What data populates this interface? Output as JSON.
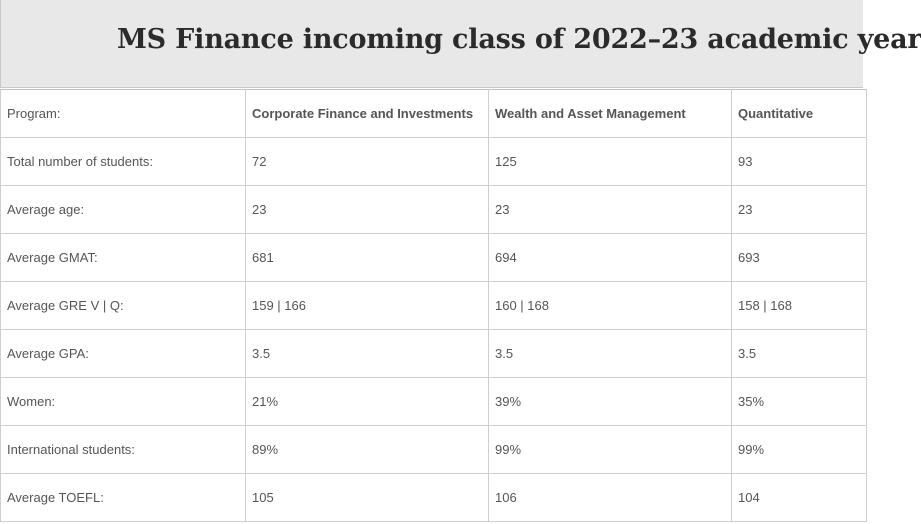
{
  "title": "MS Finance incoming class of 2022–23 academic year",
  "table": {
    "header": {
      "label": "Program:",
      "columns": [
        "Corporate Finance and Investments",
        "Wealth and Asset Management",
        "Quantitative"
      ]
    },
    "rows": [
      {
        "label": "Total number of students:",
        "values": [
          "72",
          "125",
          "93"
        ]
      },
      {
        "label": "Average age:",
        "values": [
          "23",
          "23",
          "23"
        ]
      },
      {
        "label": "Average GMAT:",
        "values": [
          "681",
          "694",
          "693"
        ]
      },
      {
        "label": "Average GRE V | Q:",
        "values": [
          "159 | 166",
          "160 | 168",
          "158 | 168"
        ]
      },
      {
        "label": "Average GPA:",
        "values": [
          "3.5",
          "3.5",
          "3.5"
        ]
      },
      {
        "label": "Women:",
        "values": [
          "21%",
          "39%",
          "35%"
        ]
      },
      {
        "label": "International students:",
        "values": [
          "89%",
          "99%",
          "99%"
        ]
      },
      {
        "label": "Average TOEFL:",
        "values": [
          "105",
          "106",
          "104"
        ]
      }
    ]
  }
}
